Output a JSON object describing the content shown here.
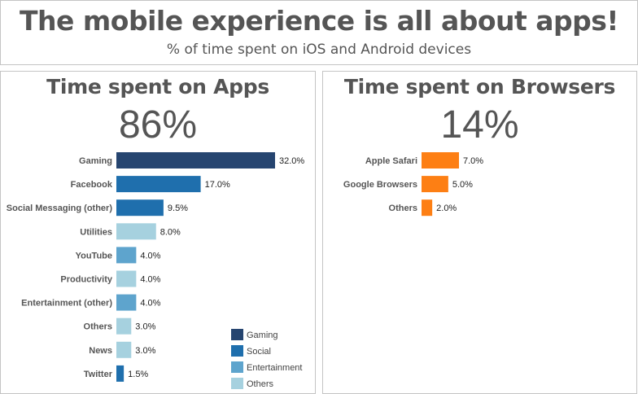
{
  "header": {
    "title": "The mobile experience is all about apps!",
    "subtitle": "% of time spent on iOS and Android devices"
  },
  "chart_data": [
    {
      "type": "bar",
      "orientation": "horizontal",
      "title": "Time spent on Apps",
      "headline": "86%",
      "categories": [
        "Gaming",
        "Facebook",
        "Social Messaging (other)",
        "Utilities",
        "YouTube",
        "Productivity",
        "Entertainment (other)",
        "Others",
        "News",
        "Twitter"
      ],
      "values": [
        32.0,
        17.0,
        9.5,
        8.0,
        4.0,
        4.0,
        4.0,
        3.0,
        3.0,
        1.5
      ],
      "value_labels": [
        "32.0%",
        "17.0%",
        "9.5%",
        "8.0%",
        "4.0%",
        "4.0%",
        "4.0%",
        "3.0%",
        "3.0%",
        "1.5%"
      ],
      "groups": [
        "Gaming",
        "Social",
        "Social",
        "Others",
        "Entertainment",
        "Others",
        "Entertainment",
        "Others",
        "Others",
        "Social"
      ],
      "legend": {
        "position": "bottom-right",
        "entries": [
          {
            "name": "Gaming",
            "color": "#264570"
          },
          {
            "name": "Social",
            "color": "#1f6fad"
          },
          {
            "name": "Entertainment",
            "color": "#5ea4cd"
          },
          {
            "name": "Others",
            "color": "#a6d1df"
          }
        ]
      },
      "xlim": [
        0,
        32
      ],
      "grid": false
    },
    {
      "type": "bar",
      "orientation": "horizontal",
      "title": "Time spent on Browsers",
      "headline": "14%",
      "categories": [
        "Apple Safari",
        "Google Browsers",
        "Others"
      ],
      "values": [
        7.0,
        5.0,
        2.0
      ],
      "value_labels": [
        "7.0%",
        "5.0%",
        "2.0%"
      ],
      "color": "#fd7f14",
      "xlim": [
        0,
        7
      ],
      "grid": false
    }
  ]
}
